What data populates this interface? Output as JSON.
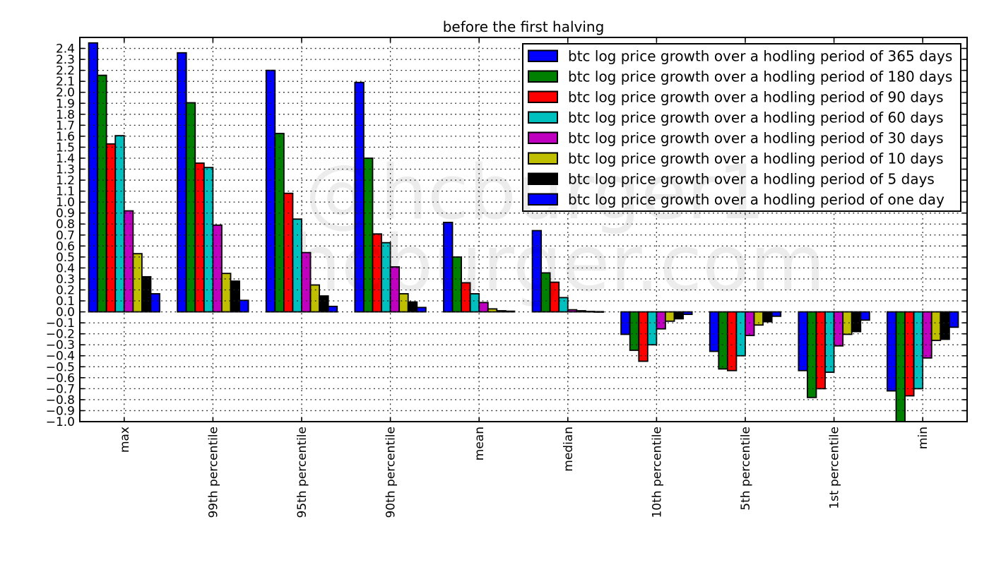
{
  "title": "before the first halving",
  "watermark": {
    "line1": "@hcburger1",
    "line2": "hcburger.com",
    "color": "#ececec"
  },
  "chart_data": {
    "type": "bar",
    "title": "before the first halving",
    "categories": [
      "max",
      "99th percentile",
      "95th percentile",
      "90th percentile",
      "mean",
      "median",
      "10th percentile",
      "5th percentile",
      "1st percentile",
      "min"
    ],
    "series": [
      {
        "name": "btc log price growth over a hodling period of 365 days",
        "color": "#0000ff",
        "values": [
          2.45,
          2.36,
          2.2,
          2.09,
          0.815,
          0.74,
          -0.205,
          -0.36,
          -0.535,
          -0.72
        ]
      },
      {
        "name": "btc log price growth over a hodling period of 180 days",
        "color": "#008000",
        "values": [
          2.155,
          1.905,
          1.625,
          1.4,
          0.5,
          0.355,
          -0.35,
          -0.52,
          -0.78,
          -1.0
        ]
      },
      {
        "name": "btc log price growth over a hodling period of 90 days",
        "color": "#ff0000",
        "values": [
          1.53,
          1.355,
          1.08,
          0.71,
          0.265,
          0.27,
          -0.45,
          -0.535,
          -0.7,
          -0.765
        ]
      },
      {
        "name": "btc log price growth over a hodling period of 60 days",
        "color": "#00bfbf",
        "values": [
          1.605,
          1.315,
          0.845,
          0.63,
          0.165,
          0.13,
          -0.3,
          -0.4,
          -0.55,
          -0.7
        ]
      },
      {
        "name": "btc log price growth over a hodling period of 30 days",
        "color": "#bf00bf",
        "values": [
          0.92,
          0.79,
          0.54,
          0.41,
          0.085,
          0.019,
          -0.155,
          -0.215,
          -0.31,
          -0.42
        ]
      },
      {
        "name": "btc log price growth over a hodling period of 10 days",
        "color": "#bfbf00",
        "values": [
          0.53,
          0.35,
          0.245,
          0.165,
          0.027,
          0.01,
          -0.085,
          -0.12,
          -0.205,
          -0.26
        ]
      },
      {
        "name": "btc log price growth over a hodling period of 5 days",
        "color": "#000000",
        "values": [
          0.32,
          0.28,
          0.145,
          0.09,
          0.01,
          0.004,
          -0.063,
          -0.09,
          -0.18,
          -0.25
        ]
      },
      {
        "name": "btc log price growth over a hodling period of one day",
        "color": "#0000ff",
        "values": [
          0.165,
          0.105,
          0.05,
          0.04,
          0.006,
          0.002,
          -0.023,
          -0.04,
          -0.075,
          -0.14
        ]
      }
    ],
    "ylim": [
      -1.0,
      2.5
    ],
    "ytick_step": 0.1,
    "ytick_label_range": [
      -1.0,
      2.4
    ],
    "grid": true,
    "grid_style": "dotted",
    "legend_position": "upper right",
    "bar_edge_color": "#000000",
    "note_clipped": "180-day bar in 'min' category is clipped at the lower axis limit of -1.0"
  }
}
